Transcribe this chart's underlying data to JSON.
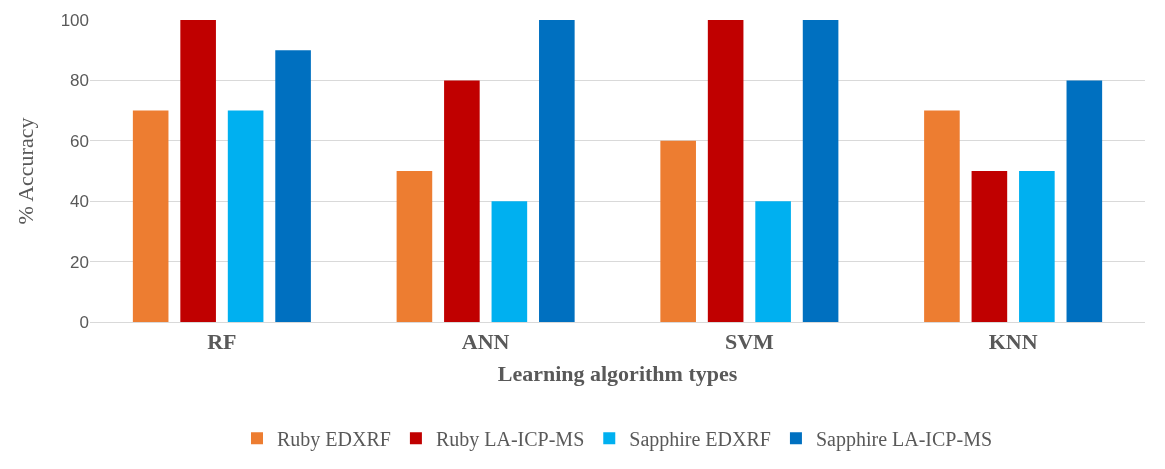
{
  "chart_data": {
    "type": "bar",
    "xlabel": "Learning algorithm types",
    "ylabel": "% Accuracy",
    "categories": [
      "RF",
      "ANN",
      "SVM",
      "KNN"
    ],
    "series": [
      {
        "name": "Ruby EDXRF",
        "color": "#ed7d31",
        "values": [
          70,
          50,
          60,
          70
        ]
      },
      {
        "name": "Ruby LA-ICP-MS",
        "color": "#c00000",
        "values": [
          100,
          80,
          100,
          50
        ]
      },
      {
        "name": "Sapphire EDXRF",
        "color": "#00b0f0",
        "values": [
          70,
          40,
          40,
          50
        ]
      },
      {
        "name": "Sapphire LA-ICP-MS",
        "color": "#0070c0",
        "values": [
          90,
          100,
          100,
          80
        ]
      }
    ],
    "ylim": [
      0,
      100
    ],
    "yticks": [
      0,
      20,
      40,
      60,
      80,
      100
    ],
    "grid": "y",
    "legend": "bottom"
  }
}
